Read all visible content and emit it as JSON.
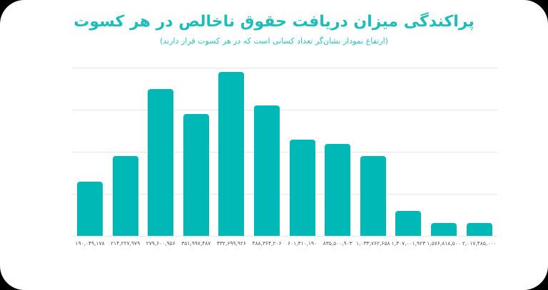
{
  "header": {
    "title": "پراکندگی میزان دریافت حقوق ناخالص در هر کسوت",
    "subtitle": "(ارتفاع نمودار نشان‌گر تعداد کسانی است که در هر کسوت قرار دارند)"
  },
  "colors": {
    "bar": "#00b9b6",
    "title": "#1dbdb9",
    "grid": "#e6e6e6",
    "background": "#ffffff"
  },
  "chart_data": {
    "type": "bar",
    "title": "پراکندگی میزان دریافت حقوق ناخالص در هر کسوت",
    "subtitle": "(ارتفاع نمودار نشان‌گر تعداد کسانی است که در هر کسوت قرار دارند)",
    "xlabel": "",
    "ylabel": "",
    "categories": [
      "۱۹۰,۰۴۹,۱۷۸",
      "۲۱۴,۲۲۷,۹۷۹",
      "۲۷۹,۶۰۰,۹۵۶",
      "۳۵۱,۹۹۷,۴۸۷",
      "۴۳۲,۶۹۹,۹۲۶",
      "۴۸۸,۳۶۴,۲۰۶",
      "۶۰۱,۳۱۰,۱۹۰",
      "۸۳۵,۵۰۰,۹۰۳",
      "۱,۰۳۳,۷۶۲,۶۵۸",
      "۱,۳۰۷,۰۰۱,۹۲۳",
      "۱,۵۷۶,۸۱۸,۵۰۰",
      "۲,۰۱۷,۴۸۵,۰۰۰"
    ],
    "values": [
      1.29,
      1.9,
      3.49,
      2.9,
      3.9,
      3.1,
      2.29,
      2.19,
      1.9,
      0.59,
      0.31,
      0.31
    ],
    "value_units": "relative height (gridline units; y-axis unlabeled)",
    "ylim": [
      0,
      4
    ],
    "gridlines": [
      0,
      1,
      2,
      3,
      4
    ],
    "grid": true,
    "legend": "none"
  }
}
